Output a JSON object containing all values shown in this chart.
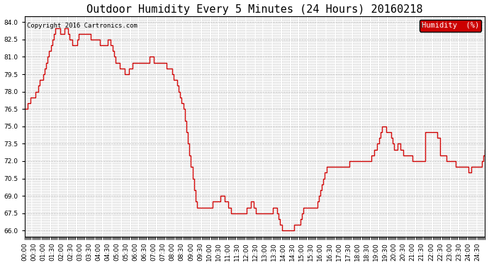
{
  "title": "Outdoor Humidity Every 5 Minutes (24 Hours) 20160218",
  "copyright": "Copyright 2016 Cartronics.com",
  "legend_label": "Humidity  (%)",
  "legend_fg": "#ffffff",
  "legend_bg": "#cc0000",
  "line_color": "#cc0000",
  "bg_color": "#ffffff",
  "plot_bg": "#ffffff",
  "grid_color": "#aaaaaa",
  "ylim": [
    65.5,
    84.5
  ],
  "yticks": [
    66.0,
    67.5,
    69.0,
    70.5,
    72.0,
    73.5,
    75.0,
    76.5,
    78.0,
    79.5,
    81.0,
    82.5,
    84.0
  ],
  "title_fontsize": 11,
  "copyright_fontsize": 6.5,
  "tick_fontsize": 6.5,
  "humidity_values": [
    76.5,
    76.5,
    77.0,
    77.0,
    77.5,
    77.5,
    77.5,
    78.0,
    78.0,
    78.5,
    79.0,
    79.0,
    79.5,
    80.0,
    80.5,
    81.0,
    81.5,
    82.0,
    82.5,
    83.0,
    83.5,
    83.5,
    83.5,
    83.0,
    83.0,
    83.0,
    83.5,
    83.5,
    83.0,
    82.5,
    82.5,
    82.0,
    82.0,
    82.0,
    82.5,
    83.0,
    83.0,
    83.0,
    83.0,
    83.0,
    83.0,
    83.0,
    83.0,
    82.5,
    82.5,
    82.5,
    82.5,
    82.5,
    82.5,
    82.0,
    82.0,
    82.0,
    82.0,
    82.0,
    82.5,
    82.5,
    82.0,
    81.5,
    81.0,
    80.5,
    80.5,
    80.5,
    80.0,
    80.0,
    80.0,
    79.5,
    79.5,
    79.5,
    80.0,
    80.0,
    80.5,
    80.5,
    80.5,
    80.5,
    80.5,
    80.5,
    80.5,
    80.5,
    80.5,
    80.5,
    80.5,
    81.0,
    81.0,
    81.0,
    80.5,
    80.5,
    80.5,
    80.5,
    80.5,
    80.5,
    80.5,
    80.5,
    80.0,
    80.0,
    80.0,
    80.0,
    79.5,
    79.0,
    79.0,
    78.5,
    78.0,
    77.5,
    77.0,
    76.5,
    75.5,
    74.5,
    73.5,
    72.5,
    71.5,
    70.5,
    69.5,
    68.5,
    68.0,
    68.0,
    68.0,
    68.0,
    68.0,
    68.0,
    68.0,
    68.0,
    68.0,
    68.0,
    68.5,
    68.5,
    68.5,
    68.5,
    68.5,
    69.0,
    69.0,
    69.0,
    68.5,
    68.5,
    68.0,
    68.0,
    67.5,
    67.5,
    67.5,
    67.5,
    67.5,
    67.5,
    67.5,
    67.5,
    67.5,
    67.5,
    68.0,
    68.0,
    68.0,
    68.5,
    68.5,
    68.0,
    67.5,
    67.5,
    67.5,
    67.5,
    67.5,
    67.5,
    67.5,
    67.5,
    67.5,
    67.5,
    67.5,
    68.0,
    68.0,
    68.0,
    67.5,
    67.0,
    66.5,
    66.0,
    66.0,
    66.0,
    66.0,
    66.0,
    66.0,
    66.0,
    66.0,
    66.5,
    66.5,
    66.5,
    66.5,
    67.0,
    67.5,
    68.0,
    68.0,
    68.0,
    68.0,
    68.0,
    68.0,
    68.0,
    68.0,
    68.0,
    68.5,
    69.0,
    69.5,
    70.0,
    70.5,
    71.0,
    71.5,
    71.5,
    71.5,
    71.5,
    71.5,
    71.5,
    71.5,
    71.5,
    71.5,
    71.5,
    71.5,
    71.5,
    71.5,
    71.5,
    71.5,
    72.0,
    72.0,
    72.0,
    72.0,
    72.0,
    72.0,
    72.0,
    72.0,
    72.0,
    72.0,
    72.0,
    72.0,
    72.0,
    72.0,
    72.5,
    72.5,
    73.0,
    73.0,
    73.5,
    74.0,
    74.5,
    75.0,
    75.0,
    75.0,
    74.5,
    74.5,
    74.5,
    74.0,
    73.5,
    73.0,
    73.0,
    73.5,
    73.5,
    73.0,
    73.0,
    72.5,
    72.5,
    72.5,
    72.5,
    72.5,
    72.5,
    72.0,
    72.0,
    72.0,
    72.0,
    72.0,
    72.0,
    72.0,
    72.0,
    74.5,
    74.5,
    74.5,
    74.5,
    74.5,
    74.5,
    74.5,
    74.5,
    74.0,
    74.0,
    72.5,
    72.5,
    72.5,
    72.5,
    72.0,
    72.0,
    72.0,
    72.0,
    72.0,
    72.0,
    71.5,
    71.5,
    71.5,
    71.5,
    71.5,
    71.5,
    71.5,
    71.5,
    71.0,
    71.0,
    71.5,
    71.5,
    71.5,
    71.5,
    71.5,
    71.5,
    71.5,
    72.0,
    72.5,
    73.0
  ]
}
